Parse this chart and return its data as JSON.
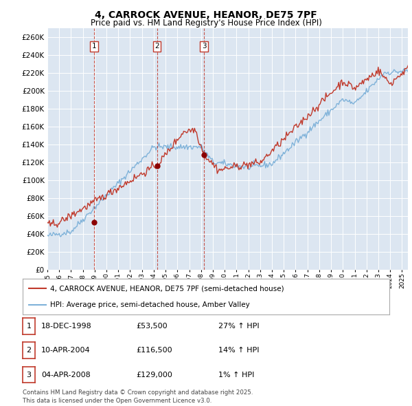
{
  "title": "4, CARROCK AVENUE, HEANOR, DE75 7PF",
  "subtitle": "Price paid vs. HM Land Registry's House Price Index (HPI)",
  "ylim": [
    0,
    270000
  ],
  "yticks": [
    0,
    20000,
    40000,
    60000,
    80000,
    100000,
    120000,
    140000,
    160000,
    180000,
    200000,
    220000,
    240000,
    260000
  ],
  "background_color": "#ffffff",
  "plot_bg_color": "#dce6f1",
  "grid_color": "#ffffff",
  "sale_points": [
    {
      "date": 1998.96,
      "price": 53500,
      "label": "1"
    },
    {
      "date": 2004.27,
      "price": 116500,
      "label": "2"
    },
    {
      "date": 2008.25,
      "price": 129000,
      "label": "3"
    }
  ],
  "legend_line1": "4, CARROCK AVENUE, HEANOR, DE75 7PF (semi-detached house)",
  "legend_line2": "HPI: Average price, semi-detached house, Amber Valley",
  "table": [
    {
      "num": "1",
      "date": "18-DEC-1998",
      "price": "£53,500",
      "hpi": "27% ↑ HPI"
    },
    {
      "num": "2",
      "date": "10-APR-2004",
      "price": "£116,500",
      "hpi": "14% ↑ HPI"
    },
    {
      "num": "3",
      "date": "04-APR-2008",
      "price": "£129,000",
      "hpi": "1% ↑ HPI"
    }
  ],
  "footer": "Contains HM Land Registry data © Crown copyright and database right 2025.\nThis data is licensed under the Open Government Licence v3.0.",
  "hpi_color": "#7fb2d9",
  "price_color": "#c0392b",
  "title_fontsize": 10,
  "subtitle_fontsize": 8.5
}
